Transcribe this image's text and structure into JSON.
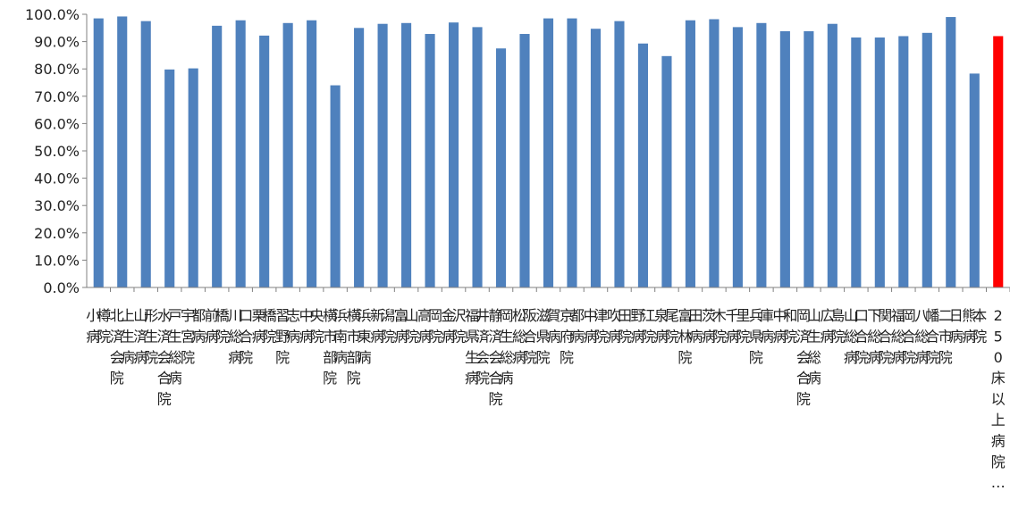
{
  "chart_data": {
    "type": "bar",
    "title": "",
    "xlabel": "",
    "ylabel": "",
    "ylim": [
      0,
      100
    ],
    "ytick_values": [
      0,
      10,
      20,
      30,
      40,
      50,
      60,
      70,
      80,
      90,
      100
    ],
    "ytick_labels": [
      "0.0%",
      "10.0%",
      "20.0%",
      "30.0%",
      "40.0%",
      "50.0%",
      "60.0%",
      "70.0%",
      "80.0%",
      "90.0%",
      "100.0%"
    ],
    "grid": false,
    "legend": "none",
    "categories": [
      "小樽病院",
      "北上済生会病院",
      "山形済生病院",
      "水戸済生会総合病院",
      "宇都宮病院",
      "前橋病院",
      "川口総合病院",
      "栗橋病院",
      "習志野病院",
      "中央病院",
      "横浜市南部病院",
      "横浜市東部病院",
      "新潟病院",
      "富山病院",
      "高岡病院",
      "金沢病院",
      "福井県済生会病院",
      "静岡済生会総合病院",
      "松阪総合病院",
      "滋賀県病院",
      "京都府病院",
      "中津病院",
      "吹田病院",
      "野江病院",
      "泉尾病院",
      "富田林病院",
      "茨木病院",
      "千里病院",
      "兵庫県病院",
      "中和病院",
      "岡山済生会総合病院",
      "広島病院",
      "山口総合病院",
      "下関総合病院",
      "福岡総合病院",
      "八幡総合病院",
      "二日市病院",
      "熊本病院",
      "250床以上病院…"
    ],
    "values": [
      98.5,
      99.2,
      97.5,
      79.8,
      80.2,
      95.8,
      97.8,
      92.2,
      96.8,
      97.8,
      74.0,
      95.0,
      96.5,
      96.8,
      92.8,
      97.0,
      95.3,
      87.5,
      92.8,
      98.5,
      98.5,
      94.7,
      97.5,
      89.3,
      84.7,
      97.8,
      98.2,
      95.3,
      96.8,
      93.8,
      93.8,
      96.5,
      91.5,
      91.5,
      92.0,
      93.2,
      99.0,
      78.3,
      92.0
    ],
    "colors": {
      "bar": "#4f81bd",
      "highlight": "#ff0000",
      "axis": "#808080"
    },
    "highlight_index": 38
  }
}
